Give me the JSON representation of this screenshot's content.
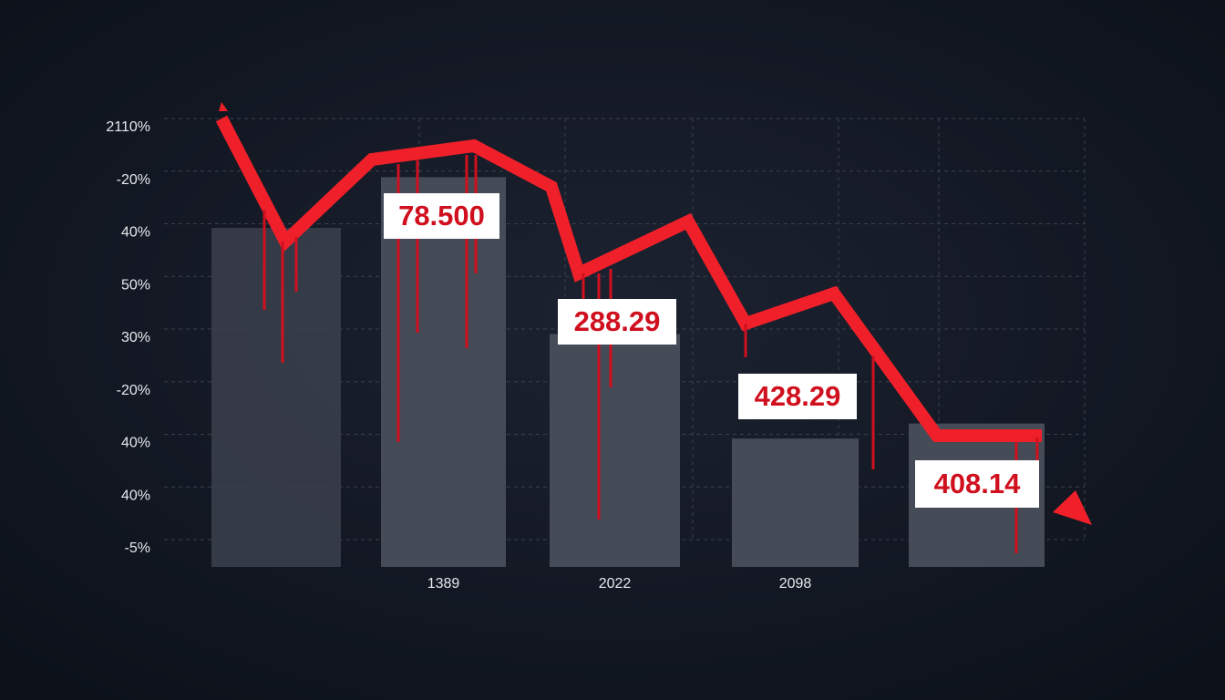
{
  "chart_data": {
    "type": "bar",
    "y_axis_labels": [
      "2110%",
      "-20%",
      "40%",
      "50%",
      "30%",
      "-20%",
      "40%",
      "40%",
      "-5%"
    ],
    "categories": [
      null,
      "1389",
      "2022",
      "2098",
      null
    ],
    "values": [
      null,
      78.5,
      288.29,
      428.29,
      408.14
    ],
    "value_labels": [
      null,
      "78.500",
      "288.29",
      "428.29",
      "408.14"
    ],
    "ylim": [
      600,
      0
    ],
    "color": "#454b57",
    "line_color": "#f0202a",
    "label_color": "#d0101e",
    "grid": true
  }
}
